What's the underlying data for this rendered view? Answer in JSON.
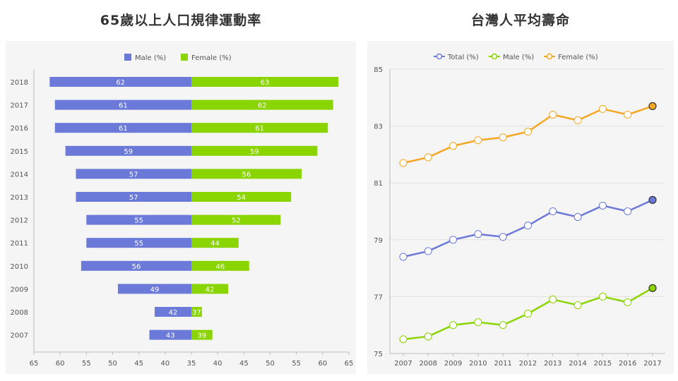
{
  "titles": {
    "left": "65歲以上人口規律運動率",
    "right": "台灣人平均壽命"
  },
  "colors": {
    "male_bar": "#6b79d8",
    "female_bar": "#8ad400",
    "total_line": "#6b79d8",
    "male_line": "#8ad400",
    "female_line": "#f5a623"
  },
  "chart_data": [
    {
      "type": "bar",
      "orientation": "horizontal-butterfly",
      "title": "65歲以上人口規律運動率",
      "categories": [
        "2018",
        "2017",
        "2016",
        "2015",
        "2014",
        "2013",
        "2012",
        "2011",
        "2010",
        "2009",
        "2008",
        "2007"
      ],
      "series": [
        {
          "name": "Male (%)",
          "values": [
            62,
            61,
            61,
            59,
            57,
            57,
            55,
            55,
            56,
            49,
            42,
            43
          ]
        },
        {
          "name": "Female (%)",
          "values": [
            63,
            62,
            61,
            59,
            56,
            54,
            52,
            44,
            46,
            42,
            37,
            39
          ]
        }
      ],
      "axis_center": 35,
      "x_ticks": [
        "65",
        "60",
        "55",
        "50",
        "45",
        "40",
        "35",
        "40",
        "45",
        "50",
        "55",
        "60",
        "65"
      ],
      "legend": "top-center",
      "grid": false
    },
    {
      "type": "line",
      "title": "台灣人平均壽命",
      "x": [
        "2007",
        "2008",
        "2009",
        "2010",
        "2011",
        "2012",
        "2013",
        "2014",
        "2015",
        "2016",
        "2017"
      ],
      "series": [
        {
          "name": "Total (%)",
          "values": [
            78.4,
            78.6,
            79.0,
            79.2,
            79.1,
            79.5,
            80.0,
            79.8,
            80.2,
            80.0,
            80.4
          ]
        },
        {
          "name": "Male (%)",
          "values": [
            75.5,
            75.6,
            76.0,
            76.1,
            76.0,
            76.4,
            76.9,
            76.7,
            77.0,
            76.8,
            77.3
          ]
        },
        {
          "name": "Female (%)",
          "values": [
            81.7,
            81.9,
            82.3,
            82.5,
            82.6,
            82.8,
            83.4,
            83.2,
            83.6,
            83.4,
            83.7
          ]
        }
      ],
      "ylim": [
        75,
        85
      ],
      "y_ticks": [
        "85",
        "83",
        "81",
        "79",
        "77",
        "75"
      ],
      "legend": "top-center",
      "grid": true
    }
  ]
}
